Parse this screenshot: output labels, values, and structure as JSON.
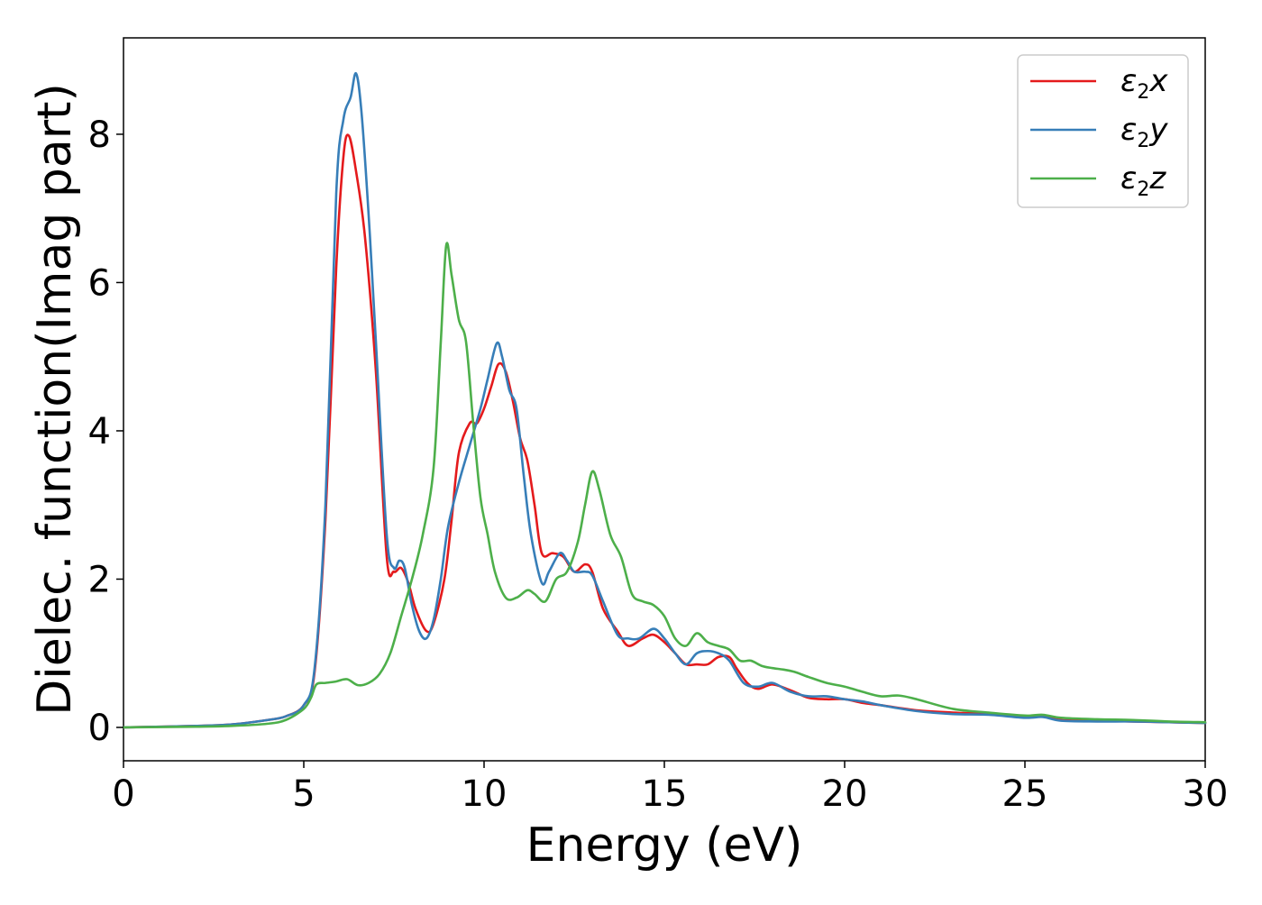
{
  "chart_data": {
    "type": "line",
    "title": "",
    "xlabel": "Energy (eV)",
    "ylabel": "Dielec. function(Imag part)",
    "xlim": [
      0,
      30
    ],
    "ylim": [
      -0.45,
      9.3
    ],
    "xticks": [
      0,
      5,
      10,
      15,
      20,
      25,
      30
    ],
    "yticks": [
      0,
      2,
      4,
      6,
      8
    ],
    "grid": false,
    "legend_position": "top-right",
    "series": [
      {
        "name": "ε2x",
        "legend": {
          "base": "ε",
          "sub": "2",
          "suffix": "x"
        },
        "color": "#e41a1c",
        "x": [
          0,
          2,
          3,
          4,
          4.5,
          5.0,
          5.3,
          5.6,
          5.9,
          6.1,
          6.25,
          6.45,
          6.7,
          7.0,
          7.3,
          7.5,
          7.7,
          7.9,
          8.1,
          8.4,
          8.6,
          8.9,
          9.1,
          9.3,
          9.6,
          9.8,
          10.0,
          10.2,
          10.4,
          10.6,
          10.8,
          11.0,
          11.2,
          11.4,
          11.6,
          11.9,
          12.2,
          12.5,
          12.8,
          13.0,
          13.3,
          13.7,
          14.0,
          14.4,
          14.7,
          15.0,
          15.3,
          15.6,
          15.9,
          16.2,
          16.5,
          16.8,
          17.0,
          17.3,
          17.6,
          18.0,
          18.5,
          19.0,
          19.5,
          20.0,
          20.5,
          21.0,
          22.0,
          23.0,
          24.0,
          25.0,
          25.5,
          26.0,
          27.0,
          28.0,
          29.0,
          30.0
        ],
        "y": [
          0,
          0.02,
          0.04,
          0.1,
          0.15,
          0.3,
          0.75,
          2.8,
          6.2,
          7.7,
          7.98,
          7.5,
          6.6,
          4.8,
          2.3,
          2.1,
          2.15,
          1.95,
          1.6,
          1.3,
          1.4,
          2.0,
          2.8,
          3.7,
          4.1,
          4.1,
          4.3,
          4.6,
          4.9,
          4.8,
          4.4,
          3.9,
          3.6,
          3.0,
          2.35,
          2.35,
          2.3,
          2.1,
          2.2,
          2.1,
          1.6,
          1.3,
          1.1,
          1.2,
          1.25,
          1.15,
          1.0,
          0.85,
          0.85,
          0.85,
          0.95,
          0.95,
          0.8,
          0.6,
          0.52,
          0.58,
          0.5,
          0.4,
          0.38,
          0.38,
          0.33,
          0.3,
          0.23,
          0.2,
          0.18,
          0.14,
          0.15,
          0.1,
          0.09,
          0.08,
          0.07,
          0.06
        ]
      },
      {
        "name": "ε2y",
        "legend": {
          "base": "ε",
          "sub": "2",
          "suffix": "y"
        },
        "color": "#377eb8",
        "x": [
          0,
          2,
          3,
          4,
          4.5,
          5.0,
          5.3,
          5.6,
          5.9,
          6.1,
          6.3,
          6.45,
          6.6,
          6.8,
          7.0,
          7.3,
          7.5,
          7.65,
          7.8,
          8.0,
          8.2,
          8.4,
          8.6,
          8.8,
          9.0,
          9.3,
          9.6,
          9.9,
          10.1,
          10.35,
          10.5,
          10.7,
          10.9,
          11.1,
          11.3,
          11.6,
          11.8,
          12.1,
          12.3,
          12.5,
          12.8,
          13.0,
          13.3,
          13.7,
          14.0,
          14.3,
          14.7,
          15.0,
          15.3,
          15.6,
          15.9,
          16.2,
          16.5,
          16.8,
          17.2,
          17.6,
          18.0,
          18.5,
          19.0,
          19.5,
          20.0,
          20.5,
          21.0,
          22.0,
          23.0,
          24.0,
          25.0,
          25.5,
          26.0,
          27.0,
          28.0,
          29.0,
          30.0
        ],
        "y": [
          0,
          0.02,
          0.04,
          0.1,
          0.15,
          0.3,
          0.8,
          3.0,
          7.2,
          8.2,
          8.5,
          8.82,
          8.3,
          6.9,
          5.2,
          2.6,
          2.15,
          2.25,
          2.15,
          1.65,
          1.3,
          1.2,
          1.45,
          2.0,
          2.7,
          3.3,
          3.8,
          4.3,
          4.7,
          5.18,
          5.0,
          4.55,
          4.3,
          3.4,
          2.6,
          1.95,
          2.1,
          2.35,
          2.25,
          2.1,
          2.1,
          2.05,
          1.7,
          1.25,
          1.2,
          1.2,
          1.33,
          1.2,
          1.0,
          0.85,
          1.0,
          1.03,
          1.0,
          0.9,
          0.6,
          0.55,
          0.6,
          0.48,
          0.42,
          0.42,
          0.38,
          0.35,
          0.3,
          0.22,
          0.18,
          0.17,
          0.13,
          0.14,
          0.09,
          0.08,
          0.08,
          0.07,
          0.06
        ]
      },
      {
        "name": "ε2z",
        "legend": {
          "base": "ε",
          "sub": "2",
          "suffix": "z"
        },
        "color": "#4daf4a",
        "x": [
          0,
          2,
          3,
          4,
          4.5,
          5.0,
          5.2,
          5.35,
          5.6,
          5.9,
          6.2,
          6.5,
          6.8,
          7.1,
          7.4,
          7.7,
          8.0,
          8.3,
          8.6,
          8.8,
          8.95,
          9.1,
          9.3,
          9.5,
          9.7,
          9.9,
          10.1,
          10.3,
          10.6,
          10.9,
          11.2,
          11.4,
          11.7,
          12.0,
          12.3,
          12.6,
          12.8,
          13.0,
          13.2,
          13.5,
          13.8,
          14.1,
          14.4,
          14.7,
          15.0,
          15.3,
          15.6,
          15.9,
          16.2,
          16.5,
          16.8,
          17.1,
          17.4,
          17.7,
          18.0,
          18.3,
          18.6,
          19.0,
          19.5,
          20.0,
          20.5,
          21.0,
          21.5,
          22.0,
          23.0,
          24.0,
          25.0,
          25.5,
          26.0,
          27.0,
          28.0,
          29.0,
          30.0
        ],
        "y": [
          0,
          0.01,
          0.02,
          0.05,
          0.1,
          0.25,
          0.4,
          0.58,
          0.6,
          0.62,
          0.65,
          0.57,
          0.6,
          0.72,
          1.0,
          1.5,
          2.0,
          2.6,
          3.5,
          5.2,
          6.5,
          6.1,
          5.5,
          5.2,
          4.1,
          3.1,
          2.6,
          2.1,
          1.75,
          1.75,
          1.85,
          1.8,
          1.7,
          2.0,
          2.1,
          2.5,
          3.0,
          3.45,
          3.2,
          2.6,
          2.3,
          1.8,
          1.7,
          1.65,
          1.5,
          1.2,
          1.1,
          1.27,
          1.15,
          1.1,
          1.05,
          0.9,
          0.9,
          0.83,
          0.8,
          0.78,
          0.75,
          0.68,
          0.6,
          0.55,
          0.48,
          0.42,
          0.43,
          0.38,
          0.25,
          0.2,
          0.16,
          0.17,
          0.13,
          0.11,
          0.1,
          0.08,
          0.07
        ]
      }
    ]
  }
}
